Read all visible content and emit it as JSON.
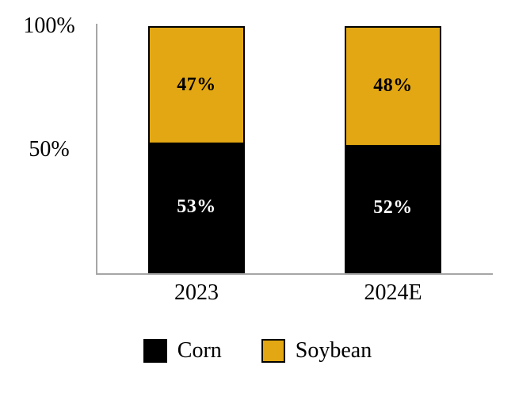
{
  "chart_data": {
    "type": "bar",
    "stacked": true,
    "title": "",
    "categories": [
      "2023",
      "2024E"
    ],
    "series": [
      {
        "name": "Corn",
        "color": "#000000",
        "label_color": "#FFFFFF",
        "values": [
          53,
          52
        ],
        "labels": [
          "53%",
          "52%"
        ]
      },
      {
        "name": "Soybean",
        "color": "#E2A712",
        "label_color": "#000000",
        "values": [
          47,
          48
        ],
        "labels": [
          "47%",
          "48%"
        ]
      }
    ],
    "ylim": [
      0,
      100
    ],
    "yticks": [
      {
        "label": "100%",
        "value": 100
      },
      {
        "label": "50%",
        "value": 50
      }
    ],
    "xlabel": "",
    "ylabel": "",
    "grid": false,
    "legend_position": "bottom",
    "axis_color": "#A6A6A6",
    "background_color": "#FFFFFF"
  }
}
